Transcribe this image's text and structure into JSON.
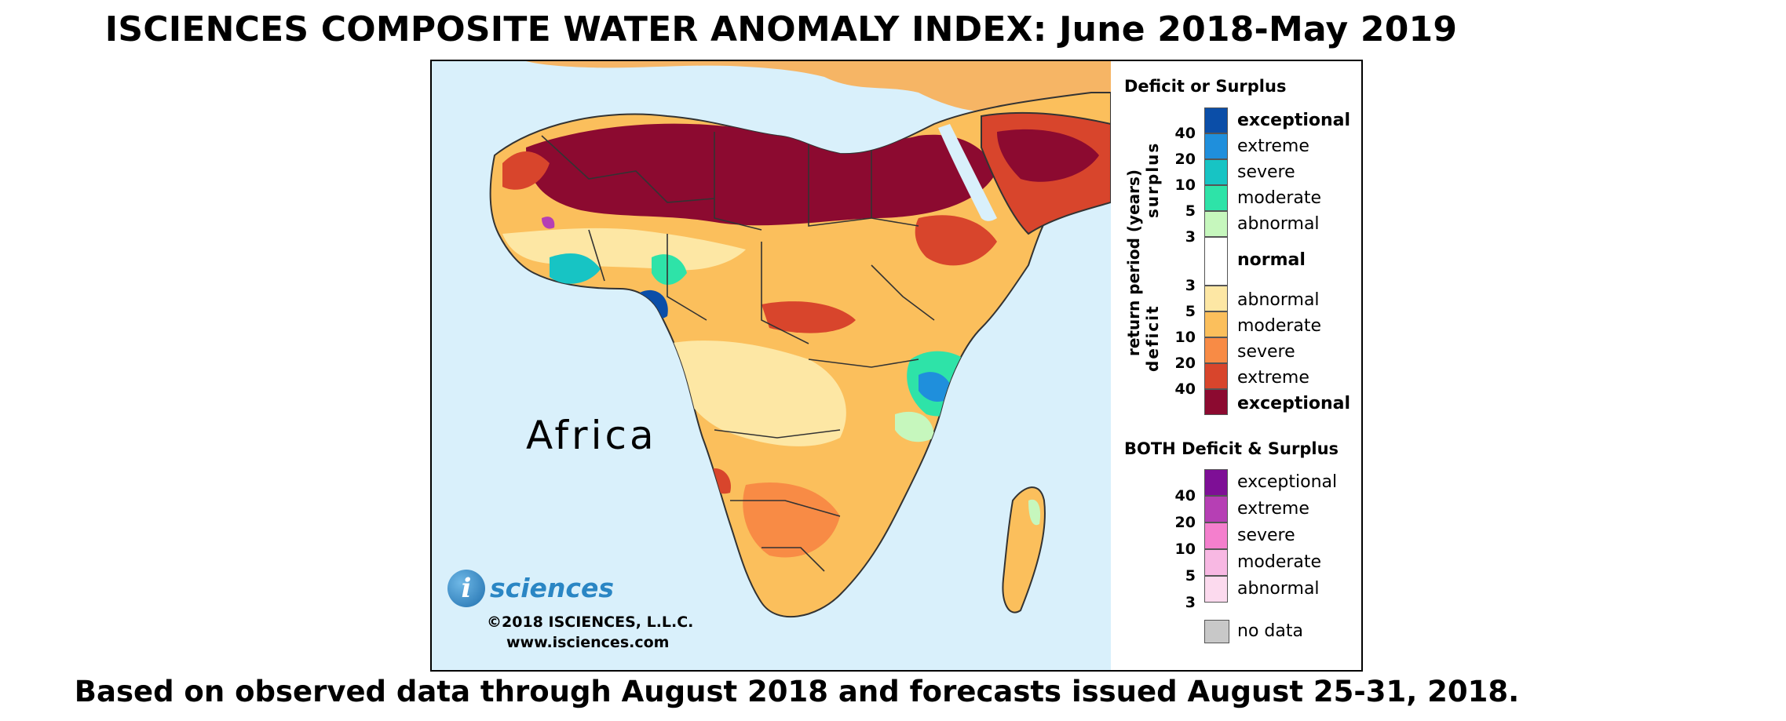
{
  "title": "ISCIENCES COMPOSITE WATER ANOMALY INDEX: June 2018-May 2019",
  "footer": "Based on observed data through August 2018 and forecasts issued August 25-31, 2018.",
  "map": {
    "region_label": "Africa",
    "ocean_color": "#d9f0fb",
    "logo_letter": "i",
    "logo_text": "sciences",
    "copyright": "©2018 ISCIENCES, L.L.C.",
    "website": "www.isciences.com"
  },
  "legend": {
    "deficit_surplus_title": "Deficit or Surplus",
    "axis_label": "return period (years)",
    "surplus_label": "surplus",
    "deficit_label": "deficit",
    "surplus": [
      {
        "label": "exceptional",
        "color": "#0b4ea8"
      },
      {
        "label": "extreme",
        "color": "#1f8fdc"
      },
      {
        "label": "severe",
        "color": "#17c4c4"
      },
      {
        "label": "moderate",
        "color": "#2ee3a8"
      },
      {
        "label": "abnormal",
        "color": "#c6f7bd"
      }
    ],
    "surplus_ticks": [
      "40",
      "20",
      "10",
      "5",
      "3"
    ],
    "normal": {
      "label": "normal",
      "color": "#ffffff"
    },
    "deficit": [
      {
        "label": "abnormal",
        "color": "#fde7a4"
      },
      {
        "label": "moderate",
        "color": "#fbbf5c"
      },
      {
        "label": "severe",
        "color": "#f88b45"
      },
      {
        "label": "extreme",
        "color": "#d8452c"
      },
      {
        "label": "exceptional",
        "color": "#8c0a30"
      }
    ],
    "deficit_ticks": [
      "3",
      "5",
      "10",
      "20",
      "40"
    ],
    "both_title": "BOTH Deficit & Surplus",
    "both": [
      {
        "label": "exceptional",
        "color": "#7e0f96"
      },
      {
        "label": "extreme",
        "color": "#b63fb4"
      },
      {
        "label": "severe",
        "color": "#f47fcd"
      },
      {
        "label": "moderate",
        "color": "#f8b8e3"
      },
      {
        "label": "abnormal",
        "color": "#fcdaee"
      }
    ],
    "both_ticks": [
      "40",
      "20",
      "10",
      "5",
      "3"
    ],
    "no_data": {
      "label": "no data",
      "color": "#c8c8c8"
    }
  }
}
